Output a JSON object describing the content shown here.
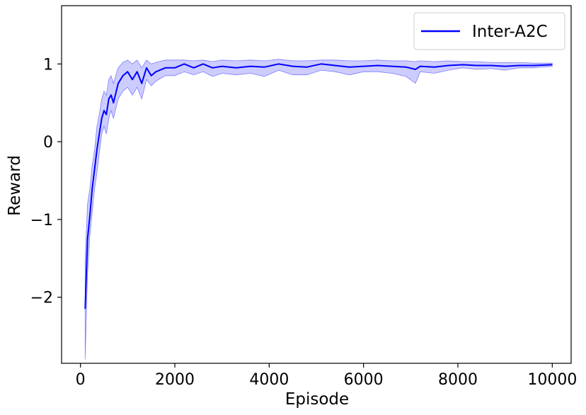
{
  "chart_data": {
    "type": "line",
    "title": "",
    "xlabel": "Episode",
    "ylabel": "Reward",
    "xlim": [
      -400,
      10400
    ],
    "ylim": [
      -2.85,
      1.75
    ],
    "x_ticks": [
      0,
      2000,
      4000,
      6000,
      8000,
      10000
    ],
    "x_tick_labels": [
      "0",
      "2000",
      "4000",
      "6000",
      "8000",
      "10000"
    ],
    "y_ticks": [
      -2,
      -1,
      0,
      1
    ],
    "y_tick_labels": [
      "−2",
      "−1",
      "0",
      "1"
    ],
    "grid": false,
    "legend_position": "top-right",
    "series": [
      {
        "name": "Inter-A2C",
        "color": "#0000ff",
        "band_color": "#0000ff",
        "x": [
          100,
          150,
          200,
          250,
          300,
          350,
          400,
          450,
          500,
          550,
          600,
          650,
          700,
          800,
          900,
          1000,
          1100,
          1200,
          1300,
          1400,
          1500,
          1600,
          1800,
          2000,
          2200,
          2400,
          2600,
          2800,
          3000,
          3300,
          3600,
          3900,
          4200,
          4500,
          4800,
          5100,
          5400,
          5700,
          6000,
          6300,
          6600,
          6900,
          7100,
          7200,
          7500,
          7800,
          8100,
          8400,
          8700,
          9000,
          9300,
          9600,
          10000
        ],
        "mean": [
          -2.15,
          -1.25,
          -0.95,
          -0.6,
          -0.35,
          -0.1,
          0.1,
          0.3,
          0.4,
          0.35,
          0.55,
          0.6,
          0.5,
          0.75,
          0.85,
          0.9,
          0.8,
          0.9,
          0.75,
          0.95,
          0.85,
          0.9,
          0.95,
          0.95,
          1.0,
          0.95,
          1.0,
          0.95,
          0.97,
          0.95,
          0.97,
          0.96,
          1.0,
          0.97,
          0.96,
          1.0,
          0.98,
          0.96,
          0.97,
          0.98,
          0.97,
          0.96,
          0.93,
          0.97,
          0.96,
          0.98,
          0.99,
          0.98,
          0.98,
          0.97,
          0.98,
          0.98,
          0.99
        ],
        "lower": [
          -2.8,
          -1.7,
          -1.2,
          -0.9,
          -0.6,
          -0.4,
          -0.15,
          0.1,
          0.2,
          0.1,
          0.3,
          0.4,
          0.3,
          0.55,
          0.65,
          0.7,
          0.6,
          0.7,
          0.55,
          0.8,
          0.72,
          0.78,
          0.85,
          0.85,
          0.9,
          0.86,
          0.9,
          0.84,
          0.88,
          0.86,
          0.88,
          0.84,
          0.92,
          0.86,
          0.86,
          0.92,
          0.9,
          0.86,
          0.9,
          0.9,
          0.88,
          0.84,
          0.75,
          0.9,
          0.88,
          0.92,
          0.95,
          0.93,
          0.94,
          0.92,
          0.95,
          0.95,
          0.97
        ],
        "upper": [
          -1.5,
          -0.8,
          -0.6,
          -0.3,
          -0.1,
          0.2,
          0.35,
          0.55,
          0.65,
          0.6,
          0.8,
          0.85,
          0.75,
          0.95,
          1.02,
          1.05,
          1.0,
          1.05,
          0.95,
          1.05,
          1.0,
          1.02,
          1.05,
          1.05,
          1.05,
          1.04,
          1.05,
          1.03,
          1.05,
          1.04,
          1.05,
          1.04,
          1.06,
          1.04,
          1.04,
          1.05,
          1.05,
          1.04,
          1.04,
          1.05,
          1.04,
          1.04,
          1.03,
          1.04,
          1.03,
          1.04,
          1.03,
          1.03,
          1.02,
          1.02,
          1.02,
          1.01,
          1.01
        ]
      }
    ]
  }
}
